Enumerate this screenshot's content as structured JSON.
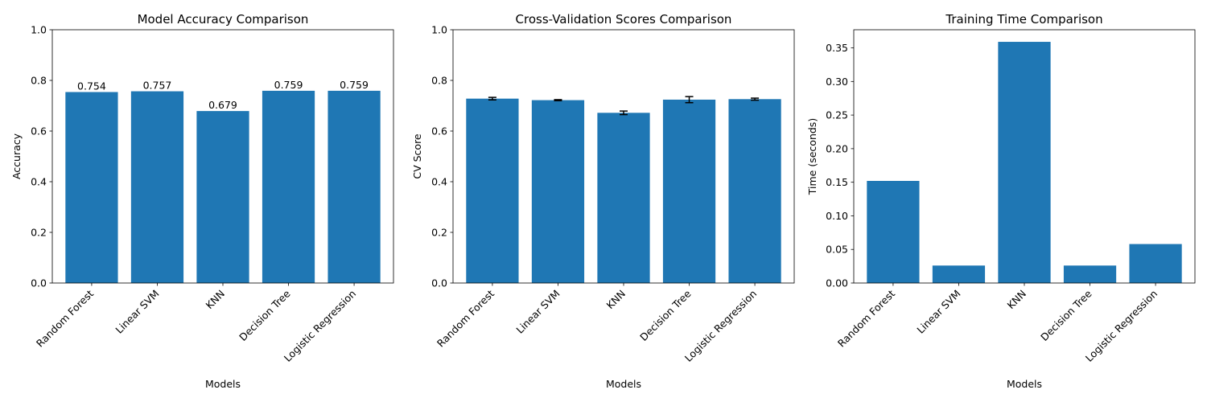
{
  "figure": {
    "background": "#ffffff",
    "bar_color": "#1f77b4",
    "errorbar_color": "#000000"
  },
  "chart_data": [
    {
      "type": "bar",
      "title": "Model Accuracy Comparison",
      "xlabel": "Models",
      "ylabel": "Accuracy",
      "categories": [
        "Random Forest",
        "Linear SVM",
        "KNN",
        "Decision Tree",
        "Logistic Regression"
      ],
      "values": [
        0.754,
        0.757,
        0.679,
        0.759,
        0.759
      ],
      "data_labels": [
        "0.754",
        "0.757",
        "0.679",
        "0.759",
        "0.759"
      ],
      "ylim": [
        0,
        1.0
      ],
      "yticks": [
        0.0,
        0.2,
        0.4,
        0.6,
        0.8,
        1.0
      ],
      "ytick_labels": [
        "0.0",
        "0.2",
        "0.4",
        "0.6",
        "0.8",
        "1.0"
      ],
      "grid": false,
      "legend": "none"
    },
    {
      "type": "bar",
      "title": "Cross-Validation Scores Comparison",
      "xlabel": "Models",
      "ylabel": "CV Score",
      "categories": [
        "Random Forest",
        "Linear SVM",
        "KNN",
        "Decision Tree",
        "Logistic Regression"
      ],
      "values": [
        0.728,
        0.722,
        0.672,
        0.724,
        0.726
      ],
      "errors": [
        0.005,
        0.002,
        0.007,
        0.012,
        0.004
      ],
      "ylim": [
        0,
        1.0
      ],
      "yticks": [
        0.0,
        0.2,
        0.4,
        0.6,
        0.8,
        1.0
      ],
      "ytick_labels": [
        "0.0",
        "0.2",
        "0.4",
        "0.6",
        "0.8",
        "1.0"
      ],
      "grid": false,
      "legend": "none"
    },
    {
      "type": "bar",
      "title": "Training Time Comparison",
      "xlabel": "Models",
      "ylabel": "Time (seconds)",
      "categories": [
        "Random Forest",
        "Linear SVM",
        "KNN",
        "Decision Tree",
        "Logistic Regression"
      ],
      "values": [
        0.152,
        0.026,
        0.359,
        0.026,
        0.058
      ],
      "ylim": [
        0,
        0.377
      ],
      "yticks": [
        0.0,
        0.05,
        0.1,
        0.15,
        0.2,
        0.25,
        0.3,
        0.35
      ],
      "ytick_labels": [
        "0.00",
        "0.05",
        "0.10",
        "0.15",
        "0.20",
        "0.25",
        "0.30",
        "0.35"
      ],
      "grid": false,
      "legend": "none"
    }
  ]
}
